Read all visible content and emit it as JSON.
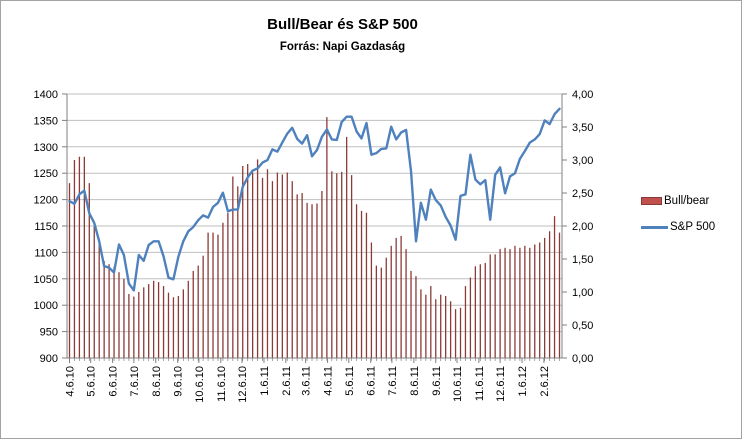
{
  "header": {
    "title": "Bull/Bear és S&P 500",
    "subtitle": "Forrás: Napi Gazdaság"
  },
  "legend": [
    {
      "label": "Bull/bear",
      "swatch": "bar",
      "color": "#C0504D",
      "border_color": "#8C3A37"
    },
    {
      "label": "S&P 500",
      "swatch": "line",
      "color": "#4F81BD"
    }
  ],
  "colors": {
    "bar_series": "#8C3A37",
    "line_series": "#4F81BD",
    "gridline": "#BFBFBF",
    "axis": "#808080",
    "text": "#000000",
    "background": "#FFFFFF",
    "frame": "#A3A3A3"
  },
  "chart_data": {
    "type": "combo-bar-line",
    "title": "Bull/Bear és S&P 500",
    "subtitle": "Forrás: Napi Gazdaság",
    "grid": "horizontal-only",
    "legend_position": "right",
    "n_points": 100,
    "left_axis": {
      "series": "S&P 500",
      "min": 900,
      "max": 1400,
      "step": 50,
      "tick_labels": [
        "1400",
        "1350",
        "1300",
        "1250",
        "1200",
        "1150",
        "1100",
        "1050",
        "1000",
        "950",
        "900"
      ]
    },
    "right_axis": {
      "series": "Bull/bear",
      "min": 0,
      "max": 4,
      "step": 0.5,
      "tick_labels": [
        "4,00",
        "3,50",
        "3,00",
        "2,50",
        "2,00",
        "1,50",
        "1,00",
        "0,50",
        "0,00"
      ]
    },
    "x_tick_labels": [
      "4.6.10",
      "5.6.10",
      "6.6.10",
      "7.6.10",
      "8.6.10",
      "9.6.10",
      "10.6.10",
      "11.6.10",
      "12.6.10",
      "1.6.11",
      "2.6.11",
      "3.6.11",
      "4.6.11",
      "5.6.11",
      "6.6.11",
      "7.6.11",
      "8.6.11",
      "9.6.11",
      "10.6.11",
      "11.6.11",
      "12.6.11",
      "1.6.12",
      "2.6.12"
    ],
    "x_tick_positions_weeks": [
      0,
      4.29,
      8.71,
      13.0,
      17.43,
      21.86,
      26.14,
      30.57,
      34.86,
      39.29,
      43.71,
      47.71,
      52.14,
      56.43,
      60.86,
      65.14,
      69.57,
      74.0,
      78.29,
      82.71,
      87.0,
      91.43,
      95.86
    ],
    "series": [
      {
        "name": "Bull/bear",
        "type": "bar",
        "axis": "right",
        "color": "#8C3A37",
        "values": [
          2.65,
          3.0,
          3.05,
          3.05,
          2.65,
          2.0,
          1.72,
          1.47,
          1.42,
          1.38,
          1.3,
          1.2,
          0.97,
          0.93,
          1.0,
          1.07,
          1.12,
          1.17,
          1.15,
          1.09,
          0.99,
          0.92,
          0.94,
          1.04,
          1.17,
          1.32,
          1.4,
          1.55,
          1.9,
          1.9,
          1.87,
          2.05,
          2.2,
          2.75,
          2.6,
          2.91,
          2.94,
          2.81,
          3.01,
          2.73,
          2.86,
          2.68,
          2.81,
          2.78,
          2.81,
          2.68,
          2.48,
          2.5,
          2.35,
          2.33,
          2.34,
          2.53,
          3.65,
          2.83,
          2.8,
          2.82,
          3.35,
          2.77,
          2.33,
          2.23,
          2.2,
          1.75,
          1.4,
          1.37,
          1.52,
          1.7,
          1.82,
          1.85,
          1.65,
          1.32,
          1.24,
          1.04,
          0.96,
          1.09,
          0.89,
          0.96,
          0.94,
          0.86,
          0.74,
          0.76,
          1.09,
          1.22,
          1.39,
          1.42,
          1.44,
          1.57,
          1.57,
          1.65,
          1.67,
          1.65,
          1.7,
          1.67,
          1.7,
          1.67,
          1.72,
          1.75,
          1.82,
          1.92,
          2.15,
          1.9
        ]
      },
      {
        "name": "S&P 500",
        "type": "line",
        "axis": "left",
        "color": "#4F81BD",
        "values": [
          1197,
          1192,
          1210,
          1217,
          1174,
          1156,
          1121,
          1074,
          1071,
          1062,
          1115,
          1095,
          1041,
          1028,
          1095,
          1084,
          1114,
          1121,
          1121,
          1093,
          1052,
          1049,
          1092,
          1121,
          1140,
          1148,
          1161,
          1170,
          1166,
          1186,
          1194,
          1213,
          1178,
          1181,
          1181,
          1224,
          1242,
          1255,
          1259,
          1270,
          1275,
          1295,
          1291,
          1308,
          1325,
          1336,
          1315,
          1306,
          1322,
          1282,
          1294,
          1319,
          1333,
          1314,
          1313,
          1347,
          1357,
          1357,
          1329,
          1316,
          1345,
          1285,
          1288,
          1296,
          1297,
          1338,
          1314,
          1327,
          1332,
          1254,
          1121,
          1194,
          1162,
          1219,
          1199,
          1189,
          1167,
          1151,
          1124,
          1207,
          1210,
          1285,
          1238,
          1229,
          1237,
          1162,
          1247,
          1261,
          1212,
          1244,
          1250,
          1277,
          1292,
          1308,
          1314,
          1324,
          1350,
          1343,
          1362,
          1372
        ]
      }
    ]
  }
}
